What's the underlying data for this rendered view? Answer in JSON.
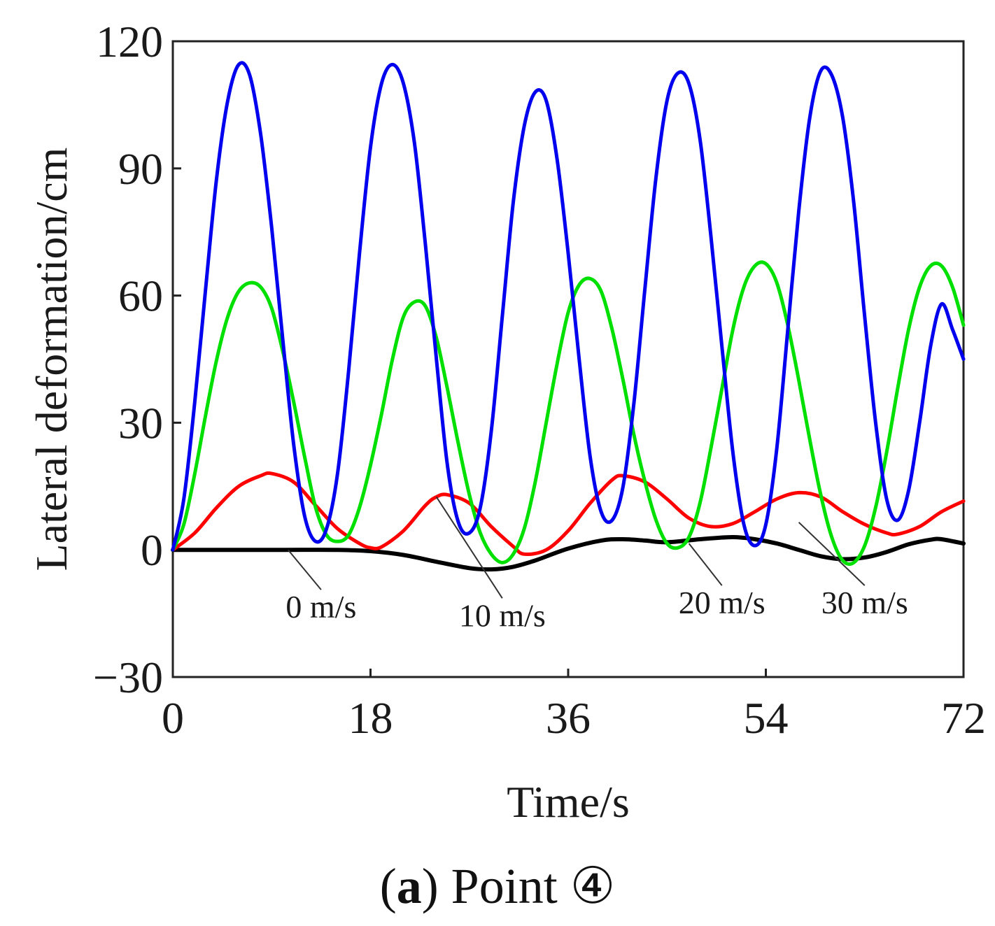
{
  "chart_data": {
    "type": "line",
    "title": "",
    "xlabel": "Time/s",
    "ylabel": "Lateral deformation/cm",
    "xlim": [
      0,
      72
    ],
    "ylim": [
      -30,
      120
    ],
    "x_ticks": [
      0,
      18,
      36,
      54,
      72
    ],
    "y_ticks": [
      -30,
      0,
      30,
      60,
      90,
      120
    ],
    "x_tick_labels": [
      "0",
      "18",
      "36",
      "54",
      "72"
    ],
    "y_tick_labels": [
      "−30",
      "0",
      "30",
      "60",
      "90",
      "120"
    ],
    "grid": false,
    "series": [
      {
        "name": "0 m/s",
        "color": "#000000",
        "points": [
          [
            0,
            0
          ],
          [
            5,
            0
          ],
          [
            10,
            0
          ],
          [
            15,
            0
          ],
          [
            18,
            -0.3
          ],
          [
            21,
            -1.2
          ],
          [
            24,
            -2.8
          ],
          [
            27,
            -4.3
          ],
          [
            29,
            -4.6
          ],
          [
            31,
            -4
          ],
          [
            33,
            -2.5
          ],
          [
            36,
            0.3
          ],
          [
            39,
            2.2
          ],
          [
            41,
            2.5
          ],
          [
            43,
            2.2
          ],
          [
            45,
            1.8
          ],
          [
            48,
            2.5
          ],
          [
            51,
            3
          ],
          [
            53,
            2.5
          ],
          [
            55,
            1.5
          ],
          [
            57,
            0
          ],
          [
            59,
            -1.5
          ],
          [
            61,
            -2.2
          ],
          [
            63,
            -1.8
          ],
          [
            65,
            -0.5
          ],
          [
            67,
            1.3
          ],
          [
            69,
            2.4
          ],
          [
            70,
            2.5
          ],
          [
            72,
            1.5
          ]
        ]
      },
      {
        "name": "10 m/s",
        "color": "#ff0000",
        "points": [
          [
            0,
            0
          ],
          [
            2,
            4
          ],
          [
            4,
            10
          ],
          [
            6,
            15
          ],
          [
            8,
            17.5
          ],
          [
            9,
            18
          ],
          [
            11,
            16
          ],
          [
            13,
            10.5
          ],
          [
            15,
            5
          ],
          [
            17,
            1.5
          ],
          [
            18,
            0.5
          ],
          [
            19,
            0.7
          ],
          [
            21,
            4.5
          ],
          [
            23,
            10.5
          ],
          [
            24,
            12.5
          ],
          [
            25,
            13
          ],
          [
            27,
            11
          ],
          [
            29,
            5.5
          ],
          [
            31,
            0.8
          ],
          [
            32,
            -1
          ],
          [
            34,
            0
          ],
          [
            36,
            4.5
          ],
          [
            38,
            11
          ],
          [
            40,
            16.5
          ],
          [
            41,
            17.5
          ],
          [
            43,
            16
          ],
          [
            45,
            12
          ],
          [
            47,
            7.5
          ],
          [
            49,
            5.5
          ],
          [
            51,
            6.2
          ],
          [
            53,
            9
          ],
          [
            55,
            12
          ],
          [
            57,
            13.5
          ],
          [
            59,
            12.5
          ],
          [
            61,
            9
          ],
          [
            63,
            6
          ],
          [
            65,
            4
          ],
          [
            66,
            3.7
          ],
          [
            68,
            5.5
          ],
          [
            70,
            9
          ],
          [
            72,
            11.5
          ]
        ]
      },
      {
        "name": "20 m/s",
        "color": "#00e000",
        "points": [
          [
            0,
            0
          ],
          [
            1,
            6
          ],
          [
            2,
            18
          ],
          [
            3,
            32
          ],
          [
            4,
            45
          ],
          [
            5,
            55
          ],
          [
            6,
            61
          ],
          [
            7,
            63
          ],
          [
            8,
            62
          ],
          [
            9,
            57
          ],
          [
            10,
            47
          ],
          [
            11,
            35
          ],
          [
            12,
            22
          ],
          [
            13,
            10
          ],
          [
            14,
            3.5
          ],
          [
            15,
            2
          ],
          [
            16,
            3.5
          ],
          [
            17,
            10
          ],
          [
            18,
            20
          ],
          [
            19,
            32
          ],
          [
            20,
            45
          ],
          [
            21,
            55
          ],
          [
            22,
            58.5
          ],
          [
            23,
            57.5
          ],
          [
            24,
            50
          ],
          [
            25,
            38
          ],
          [
            26,
            25
          ],
          [
            27,
            13
          ],
          [
            28,
            4
          ],
          [
            29,
            -1
          ],
          [
            30,
            -3
          ],
          [
            31,
            -1
          ],
          [
            32,
            5
          ],
          [
            33,
            16
          ],
          [
            34,
            30
          ],
          [
            35,
            44
          ],
          [
            36,
            56
          ],
          [
            37,
            62.5
          ],
          [
            38,
            64
          ],
          [
            39,
            61
          ],
          [
            40,
            52
          ],
          [
            41,
            40
          ],
          [
            42,
            27
          ],
          [
            43,
            16
          ],
          [
            44,
            7
          ],
          [
            45,
            1.5
          ],
          [
            46,
            0.5
          ],
          [
            47,
            3
          ],
          [
            48,
            11
          ],
          [
            49,
            24
          ],
          [
            50,
            38
          ],
          [
            51,
            52
          ],
          [
            52,
            62
          ],
          [
            53,
            67
          ],
          [
            54,
            67.5
          ],
          [
            55,
            63
          ],
          [
            56,
            53
          ],
          [
            57,
            40
          ],
          [
            58,
            26
          ],
          [
            59,
            13
          ],
          [
            60,
            3
          ],
          [
            61,
            -2.5
          ],
          [
            62,
            -3
          ],
          [
            63,
            1
          ],
          [
            64,
            10
          ],
          [
            65,
            23
          ],
          [
            66,
            38
          ],
          [
            67,
            52
          ],
          [
            68,
            62
          ],
          [
            69,
            67
          ],
          [
            70,
            67
          ],
          [
            71,
            62
          ],
          [
            72,
            53
          ]
        ]
      },
      {
        "name": "30 m/s",
        "color": "#0000ee",
        "points": [
          [
            0,
            0
          ],
          [
            1,
            12
          ],
          [
            2,
            35
          ],
          [
            3,
            62
          ],
          [
            4,
            88
          ],
          [
            5,
            106
          ],
          [
            6,
            114.5
          ],
          [
            7,
            112
          ],
          [
            8,
            98
          ],
          [
            9,
            76
          ],
          [
            10,
            50
          ],
          [
            11,
            25
          ],
          [
            12,
            8
          ],
          [
            13,
            2
          ],
          [
            14,
            5
          ],
          [
            15,
            18
          ],
          [
            16,
            42
          ],
          [
            17,
            70
          ],
          [
            18,
            95
          ],
          [
            19,
            110
          ],
          [
            20,
            114.5
          ],
          [
            21,
            110
          ],
          [
            22,
            96
          ],
          [
            23,
            72
          ],
          [
            24,
            45
          ],
          [
            25,
            20
          ],
          [
            26,
            6.5
          ],
          [
            27,
            4
          ],
          [
            28,
            10
          ],
          [
            29,
            28
          ],
          [
            30,
            55
          ],
          [
            31,
            82
          ],
          [
            32,
            100
          ],
          [
            33,
            108
          ],
          [
            34,
            106
          ],
          [
            35,
            92
          ],
          [
            36,
            70
          ],
          [
            37,
            45
          ],
          [
            38,
            22
          ],
          [
            39,
            9
          ],
          [
            40,
            7
          ],
          [
            41,
            15
          ],
          [
            42,
            35
          ],
          [
            43,
            62
          ],
          [
            44,
            88
          ],
          [
            45,
            106
          ],
          [
            46,
            112.5
          ],
          [
            47,
            110
          ],
          [
            48,
            97
          ],
          [
            49,
            74
          ],
          [
            50,
            48
          ],
          [
            51,
            23
          ],
          [
            52,
            6
          ],
          [
            53,
            1
          ],
          [
            54,
            6
          ],
          [
            55,
            24
          ],
          [
            56,
            52
          ],
          [
            57,
            80
          ],
          [
            58,
            102
          ],
          [
            59,
            113
          ],
          [
            60,
            112
          ],
          [
            61,
            102
          ],
          [
            62,
            82
          ],
          [
            63,
            55
          ],
          [
            64,
            30
          ],
          [
            65,
            12
          ],
          [
            66,
            7
          ],
          [
            67,
            14
          ],
          [
            68,
            30
          ],
          [
            69,
            48
          ],
          [
            70,
            58
          ],
          [
            71,
            52
          ],
          [
            72,
            45
          ]
        ]
      }
    ],
    "annotations": [
      {
        "text": "0 m/s",
        "series": "0 m/s",
        "point": [
          10.5,
          0
        ],
        "label_pos": [
          13.5,
          -16
        ]
      },
      {
        "text": "10 m/s",
        "series": "10 m/s",
        "point": [
          24,
          12.5
        ],
        "label_pos": [
          30,
          -18
        ]
      },
      {
        "text": "20 m/s",
        "series": "20 m/s",
        "point": [
          47,
          1.5
        ],
        "label_pos": [
          50,
          -15
        ]
      },
      {
        "text": "30 m/s",
        "series": "30 m/s",
        "point": [
          57,
          6.5
        ],
        "label_pos": [
          63,
          -15
        ]
      }
    ]
  },
  "caption": {
    "letter": "a",
    "text": "Point ④"
  }
}
